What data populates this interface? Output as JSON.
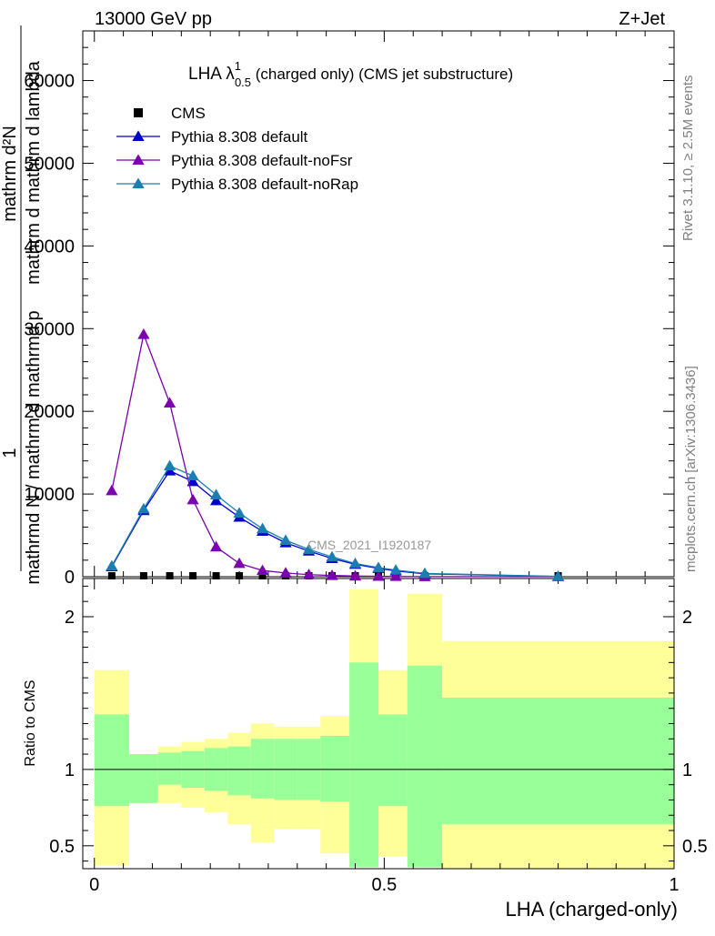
{
  "header": {
    "energy_label": "13000 GeV pp",
    "process_label": "Z+Jet"
  },
  "side_labels": {
    "rivet": "Rivet 3.1.10, ≥ 2.5M events",
    "mcplots": "mcplots.cern.ch [arXiv:1306.3436]"
  },
  "colors": {
    "cms": "#000000",
    "default": "#0000cc",
    "noFsr": "#7a00b0",
    "noRap": "#1a7fae",
    "band_inner": "#99ff99",
    "band_outer": "#ffff99"
  },
  "chart_data": [
    {
      "type": "line",
      "title_main": "LHA λ",
      "title_sup": "1",
      "title_sub": "0.5",
      "title_rest": " (charged only) (CMS jet substructure)",
      "ylabel_num": "mathrm d²N",
      "ylabel_den": "mathrm d p_T mathrm d lambda",
      "ylabel_den_main": "mathrm d p",
      "ylabel_den_sub": "T",
      "ylabel_den_rest": " mathrm d lambda",
      "ylabel_frac_pre": "1",
      "ylabel_frac_den": "mathrm N / mathrm d p_T",
      "ylabel_left": "mathrmd N / mathrm d mathrmd p_T  mathrm d lambda",
      "ylabel_stack": [
        "1",
        "mathrmd N / mathrm d mathrmd p",
        "mathrm d mathrm d lambda"
      ],
      "watermark": "CMS_2021_I1920187",
      "ylim": [
        0,
        66000
      ],
      "xlim": [
        -0.02,
        1.0
      ],
      "yticks": [
        0,
        10000,
        20000,
        30000,
        40000,
        50000,
        60000
      ],
      "ytick_labels": [
        "0",
        "10000",
        "20000",
        "30000",
        "40000",
        "50000",
        "60000"
      ],
      "legend": {
        "placement": "top-left",
        "entries": [
          "CMS",
          "Pythia 8.308 default",
          "Pythia 8.308 default-noFsr",
          "Pythia 8.308 default-noRap"
        ]
      },
      "series": [
        {
          "name": "CMS",
          "marker": "square",
          "x": [
            0.03,
            0.085,
            0.13,
            0.17,
            0.21,
            0.25,
            0.29,
            0.33,
            0.37,
            0.41,
            0.45,
            0.49,
            0.52,
            0.57,
            0.8
          ],
          "values": [
            0,
            0,
            0,
            0,
            0,
            0,
            0,
            0,
            0,
            0,
            0,
            0,
            0,
            0,
            0
          ]
        },
        {
          "name": "Pythia 8.308 default",
          "marker": "triangle",
          "x": [
            0.03,
            0.085,
            0.13,
            0.17,
            0.21,
            0.25,
            0.29,
            0.33,
            0.37,
            0.41,
            0.45,
            0.49,
            0.52,
            0.57,
            0.8
          ],
          "values": [
            1200,
            8000,
            12800,
            11500,
            9200,
            7200,
            5500,
            4100,
            3100,
            2200,
            1500,
            1000,
            700,
            350,
            30
          ]
        },
        {
          "name": "Pythia 8.308 default-noFsr",
          "marker": "triangle",
          "x": [
            0.03,
            0.085,
            0.13,
            0.17,
            0.21,
            0.25,
            0.29,
            0.33,
            0.37,
            0.41,
            0.45,
            0.49,
            0.52,
            0.57,
            0.8
          ],
          "values": [
            10400,
            29300,
            21000,
            9300,
            3600,
            1600,
            750,
            450,
            250,
            150,
            80,
            50,
            30,
            15,
            2
          ]
        },
        {
          "name": "Pythia 8.308 default-noRap",
          "marker": "triangle",
          "x": [
            0.03,
            0.085,
            0.13,
            0.17,
            0.21,
            0.25,
            0.29,
            0.33,
            0.37,
            0.41,
            0.45,
            0.49,
            0.52,
            0.57,
            0.8
          ],
          "values": [
            1300,
            8200,
            13400,
            12200,
            9900,
            7700,
            5800,
            4400,
            3300,
            2400,
            1600,
            1100,
            800,
            400,
            35
          ]
        }
      ]
    },
    {
      "type": "area",
      "ylabel": "Ratio to CMS",
      "xlabel": "LHA (charged-only)",
      "xlim": [
        -0.02,
        1.0
      ],
      "ylim": [
        0.35,
        2.25
      ],
      "xticks": [
        0,
        0.5,
        1
      ],
      "xtick_labels": [
        "0",
        "0.5",
        "1"
      ],
      "yticks": [
        0.5,
        1,
        2
      ],
      "ytick_labels": [
        "0.5",
        "1",
        "2"
      ],
      "reference_line": 1,
      "bins": [
        {
          "x0": 0.0,
          "x1": 0.06,
          "inner": [
            0.76,
            1.36
          ],
          "outer": [
            0.37,
            1.65
          ]
        },
        {
          "x0": 0.06,
          "x1": 0.11,
          "inner": [
            0.78,
            1.1
          ],
          "outer": [
            0.78,
            1.1
          ]
        },
        {
          "x0": 0.11,
          "x1": 0.15,
          "inner": [
            0.9,
            1.11
          ],
          "outer": [
            0.78,
            1.15
          ]
        },
        {
          "x0": 0.15,
          "x1": 0.19,
          "inner": [
            0.88,
            1.12
          ],
          "outer": [
            0.75,
            1.18
          ]
        },
        {
          "x0": 0.19,
          "x1": 0.23,
          "inner": [
            0.86,
            1.14
          ],
          "outer": [
            0.72,
            1.2
          ]
        },
        {
          "x0": 0.23,
          "x1": 0.27,
          "inner": [
            0.83,
            1.15
          ],
          "outer": [
            0.64,
            1.24
          ]
        },
        {
          "x0": 0.27,
          "x1": 0.31,
          "inner": [
            0.81,
            1.2
          ],
          "outer": [
            0.52,
            1.3
          ]
        },
        {
          "x0": 0.31,
          "x1": 0.35,
          "inner": [
            0.8,
            1.2
          ],
          "outer": [
            0.61,
            1.28
          ]
        },
        {
          "x0": 0.35,
          "x1": 0.39,
          "inner": [
            0.8,
            1.2
          ],
          "outer": [
            0.61,
            1.28
          ]
        },
        {
          "x0": 0.39,
          "x1": 0.44,
          "inner": [
            0.79,
            1.22
          ],
          "outer": [
            0.45,
            1.35
          ]
        },
        {
          "x0": 0.44,
          "x1": 0.49,
          "inner": [
            0.36,
            1.7
          ],
          "outer": [
            0.36,
            2.18
          ]
        },
        {
          "x0": 0.49,
          "x1": 0.54,
          "inner": [
            0.76,
            1.36
          ],
          "outer": [
            0.43,
            1.65
          ]
        },
        {
          "x0": 0.54,
          "x1": 0.6,
          "inner": [
            0.36,
            1.68
          ],
          "outer": [
            0.36,
            2.15
          ]
        },
        {
          "x0": 0.6,
          "x1": 1.0,
          "inner": [
            0.64,
            1.47
          ],
          "outer": [
            0.35,
            1.84
          ]
        }
      ]
    }
  ]
}
